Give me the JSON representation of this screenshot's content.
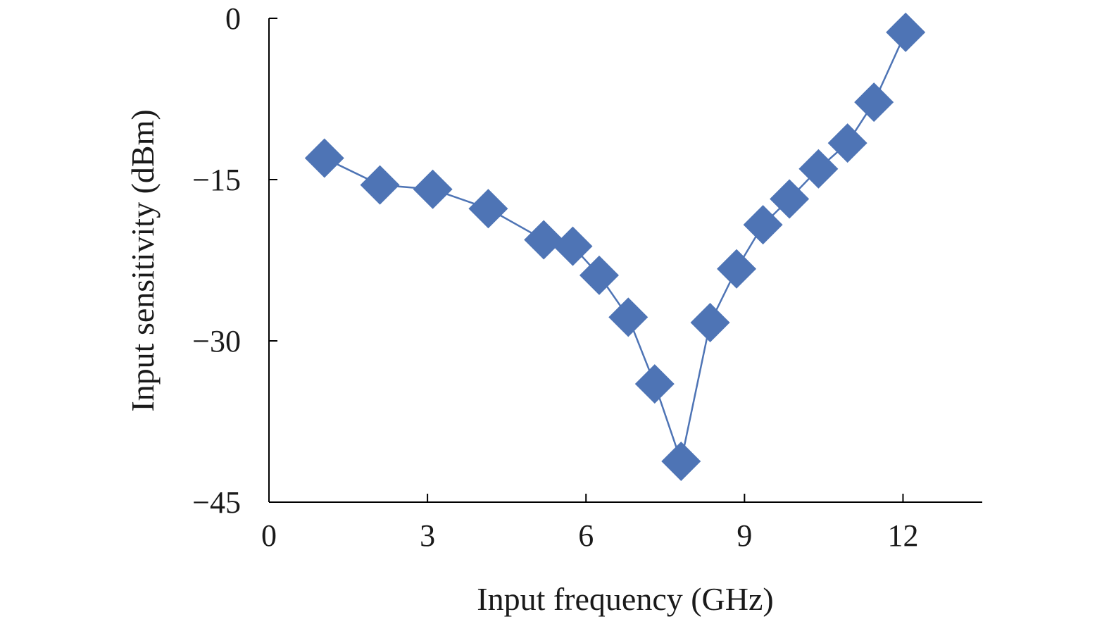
{
  "chart_data": {
    "type": "line",
    "title": "",
    "xlabel": "Input frequency (GHz)",
    "ylabel": "Input sensitivity (dBm)",
    "xlim": [
      0,
      13.5
    ],
    "ylim": [
      -45,
      0
    ],
    "xticks": [
      0,
      3,
      6,
      9,
      12
    ],
    "yticks": [
      0,
      -15,
      -30,
      -45
    ],
    "xtick_labels": [
      "0",
      "3",
      "6",
      "9",
      "12"
    ],
    "ytick_labels": [
      "0",
      "−15",
      "−30",
      "−45"
    ],
    "grid": false,
    "legend": "none",
    "marker": "diamond",
    "series": [
      {
        "name": "Input sensitivity",
        "color": "#4e74b5",
        "x": [
          1.05,
          2.1,
          3.1,
          4.15,
          5.2,
          5.75,
          6.25,
          6.8,
          7.3,
          7.8,
          8.35,
          8.85,
          9.35,
          9.85,
          10.4,
          10.95,
          11.45,
          12.05
        ],
        "y": [
          -13.0,
          -15.5,
          -15.9,
          -17.7,
          -20.6,
          -21.2,
          -23.9,
          -27.8,
          -34.0,
          -41.2,
          -28.3,
          -23.3,
          -19.2,
          -16.8,
          -14.0,
          -11.6,
          -7.8,
          -1.3
        ]
      }
    ]
  }
}
